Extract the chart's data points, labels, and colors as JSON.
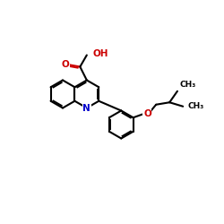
{
  "bg": "#ffffff",
  "bond_color": "#000000",
  "N_color": "#0000cc",
  "O_color": "#cc0000",
  "lw": 1.5,
  "r": 0.62,
  "xlim": [
    0,
    10
  ],
  "ylim": [
    0,
    10
  ]
}
